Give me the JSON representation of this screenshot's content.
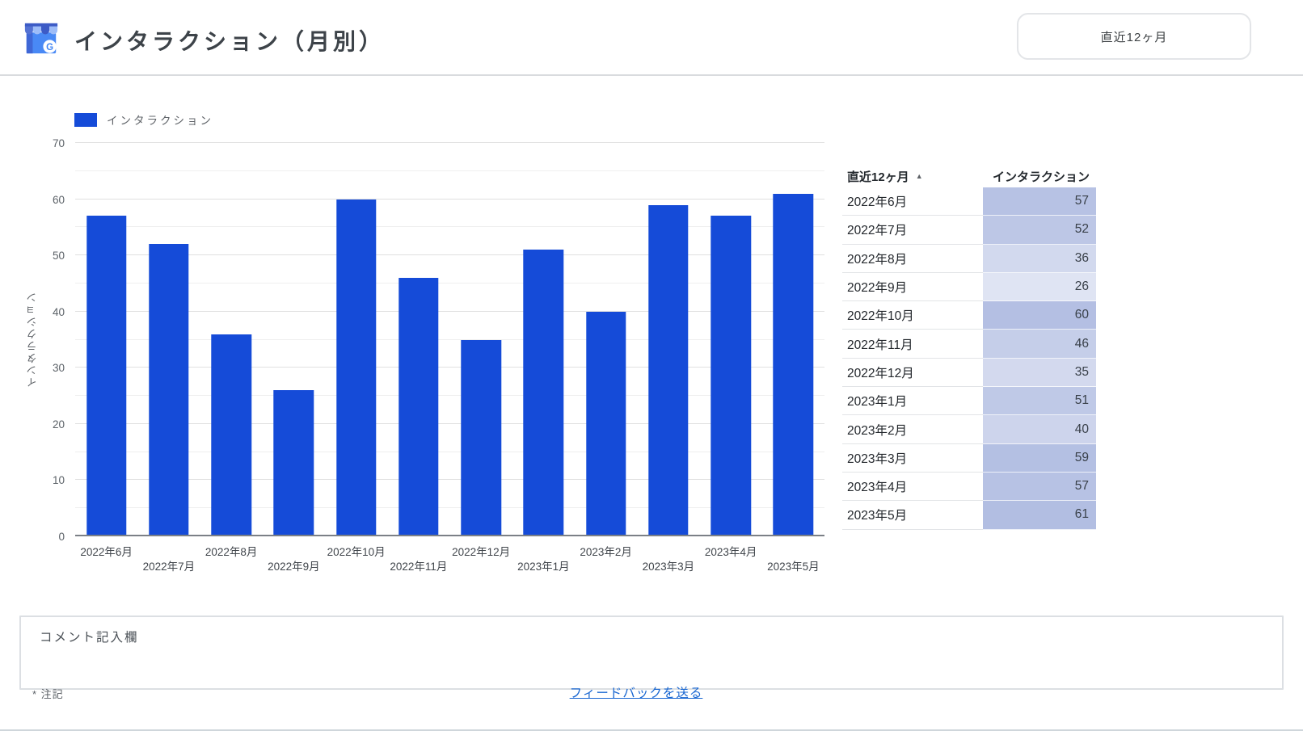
{
  "header": {
    "title": "インタラクション（月別）",
    "logo_icon": "google-business-profile-icon",
    "date_range_label": "直近12ヶ月"
  },
  "chart_data": {
    "type": "bar",
    "title": "インタラクション（月別）",
    "legend_label": "インタラクション",
    "ylabel": "インタラクション",
    "xlabel": "",
    "categories": [
      "2022年6月",
      "2022年7月",
      "2022年8月",
      "2022年9月",
      "2022年10月",
      "2022年11月",
      "2022年12月",
      "2023年1月",
      "2023年2月",
      "2023年3月",
      "2023年4月",
      "2023年5月"
    ],
    "values": [
      57,
      52,
      36,
      26,
      60,
      46,
      35,
      51,
      40,
      59,
      57,
      61
    ],
    "ylim": [
      0,
      70
    ],
    "y_major_step": 10,
    "y_minor_step": 5,
    "grid": true,
    "legend_position": "top-left",
    "bar_color": "#154bd8"
  },
  "table": {
    "columns": [
      "直近12ヶ月",
      "インタラクション"
    ],
    "sort_icon": "▲",
    "heatmap_base_rgb": "63,92,183",
    "rows": [
      {
        "month": "2022年6月",
        "value": 57
      },
      {
        "month": "2022年7月",
        "value": 52
      },
      {
        "month": "2022年8月",
        "value": 36
      },
      {
        "month": "2022年9月",
        "value": 26
      },
      {
        "month": "2022年10月",
        "value": 60
      },
      {
        "month": "2022年11月",
        "value": 46
      },
      {
        "month": "2022年12月",
        "value": 35
      },
      {
        "month": "2023年1月",
        "value": 51
      },
      {
        "month": "2023年2月",
        "value": 40
      },
      {
        "month": "2023年3月",
        "value": 59
      },
      {
        "month": "2023年4月",
        "value": 57
      },
      {
        "month": "2023年5月",
        "value": 61
      }
    ]
  },
  "comment": {
    "placeholder": "コメント記入欄"
  },
  "footer": {
    "note": "* 注記",
    "feedback_label": "フィードバックを送る"
  },
  "colors": {
    "bar": "#154bd8",
    "accent_blue": "#1967d2",
    "icon_body": "#4989F5",
    "icon_awning_dark": "#3C5BC6",
    "icon_awning_mid": "#5472D3",
    "icon_awning_light": "#9DBCF8"
  }
}
